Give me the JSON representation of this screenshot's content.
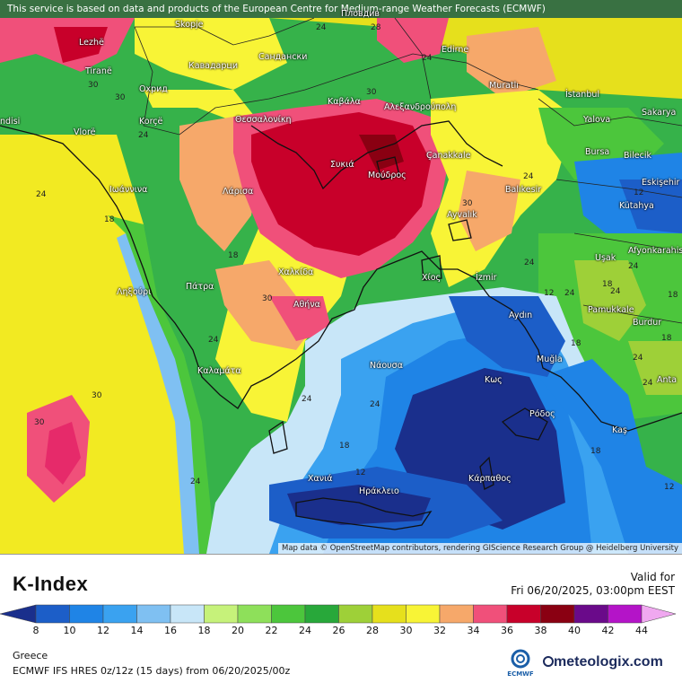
{
  "map": {
    "top_note": "This service is based on data and products of the European Centre for Medium-range Weather Forecasts (ECMWF)",
    "attribution": "Map data © OpenStreetMap contributors, rendering GIScience Research Group @ Heidelberg University",
    "cities": [
      {
        "name": "Skopje",
        "label": "Skopje"
      },
      {
        "name": "Lezhe",
        "label": "Lezhë"
      },
      {
        "name": "Tirane",
        "label": "Tiranë"
      },
      {
        "name": "Kavadarci",
        "label": "Кавадарци"
      },
      {
        "name": "Sandanski",
        "label": "Сандански"
      },
      {
        "name": "Ohrid",
        "label": "Охрид"
      },
      {
        "name": "Edirne",
        "label": "Edirne"
      },
      {
        "name": "Muratli",
        "label": "Muratlı"
      },
      {
        "name": "Istanbul",
        "label": "İstanbul"
      },
      {
        "name": "Yalova",
        "label": "Yalova"
      },
      {
        "name": "Sakarya",
        "label": "Sakarya"
      },
      {
        "name": "Kavala",
        "label": "Καβάλα"
      },
      {
        "name": "Alexandroupoli",
        "label": "Αλεξανδρούπολη"
      },
      {
        "name": "Thessaloniki",
        "label": "Θεσσαλονίκη"
      },
      {
        "name": "Korce",
        "label": "Korçë"
      },
      {
        "name": "Vlore",
        "label": "Vlorë"
      },
      {
        "name": "Bursa",
        "label": "Bursa"
      },
      {
        "name": "Bilecik",
        "label": "Bilecik"
      },
      {
        "name": "Eskisehir",
        "label": "Eskişehir"
      },
      {
        "name": "Canakkale",
        "label": "Çanakkale"
      },
      {
        "name": "Sykia",
        "label": "Συκιά"
      },
      {
        "name": "Moudros",
        "label": "Μούδρος"
      },
      {
        "name": "Ioannina",
        "label": "Ιωάννινα"
      },
      {
        "name": "Larisa",
        "label": "Λάρισα"
      },
      {
        "name": "Balikesir",
        "label": "Balıkesir"
      },
      {
        "name": "Kutahya",
        "label": "Kütahya"
      },
      {
        "name": "Ayvalik",
        "label": "Ayvalık"
      },
      {
        "name": "Afyonkarahisar",
        "label": "Afyonkarahisar"
      },
      {
        "name": "Usak",
        "label": "Uşak"
      },
      {
        "name": "Lixouri",
        "label": "Ληξούρι"
      },
      {
        "name": "Patra",
        "label": "Πάτρα"
      },
      {
        "name": "Chalkida",
        "label": "Χαλκίδα"
      },
      {
        "name": "Chios",
        "label": "Χίος"
      },
      {
        "name": "Izmir",
        "label": "İzmir"
      },
      {
        "name": "Athina",
        "label": "Αθήνα"
      },
      {
        "name": "Aydin",
        "label": "Aydın"
      },
      {
        "name": "Pamukkale",
        "label": "Pamukkale"
      },
      {
        "name": "Burdur",
        "label": "Burdur"
      },
      {
        "name": "Kalamata",
        "label": "Καλαμάτα"
      },
      {
        "name": "Naousa",
        "label": "Νάουσα"
      },
      {
        "name": "Mugla",
        "label": "Muğla"
      },
      {
        "name": "Kos",
        "label": "Κως"
      },
      {
        "name": "Rodos",
        "label": "Ρόδος"
      },
      {
        "name": "Kas",
        "label": "Kaş"
      },
      {
        "name": "Chania",
        "label": "Χανιά"
      },
      {
        "name": "Karpathos",
        "label": "Κάρπαθος"
      },
      {
        "name": "Irakleio",
        "label": "Ηράκλειο"
      },
      {
        "name": "Antalya",
        "label": "Anta"
      },
      {
        "name": "Plovdiv",
        "label": "Пловдив"
      },
      {
        "name": "Adisi",
        "label": "ndisi"
      }
    ],
    "contour_labels": [
      "24",
      "28",
      "30",
      "24",
      "30",
      "24",
      "30",
      "24",
      "12",
      "24",
      "18",
      "30",
      "24",
      "18",
      "24",
      "12",
      "24",
      "18",
      "30",
      "30",
      "18",
      "18",
      "30",
      "24",
      "18",
      "24",
      "24",
      "12",
      "18",
      "12",
      "24",
      "24",
      "24",
      "18",
      "24"
    ]
  },
  "legend": {
    "title": "K-Index",
    "valid_label": "Valid for",
    "valid_time": "Fri 06/20/2025, 03:00pm EEST",
    "region": "Greece",
    "model_line": "ECMWF IFS HRES 0z/12z (15 days) from 06/20/2025/00z",
    "ecmwf_label": "ECMWF",
    "brand": "meteologix.com",
    "ticks": [
      "8",
      "10",
      "12",
      "14",
      "16",
      "18",
      "20",
      "22",
      "24",
      "26",
      "28",
      "30",
      "32",
      "34",
      "36",
      "38",
      "40",
      "42",
      "44"
    ],
    "colors": [
      "#1a2f8c",
      "#1c5ec8",
      "#1f84e6",
      "#3aa2f0",
      "#7fc0f2",
      "#c8e6f8",
      "#c6f27a",
      "#8ee05a",
      "#4cc63c",
      "#28a83a",
      "#9ed038",
      "#e6e01c",
      "#f8f436",
      "#f6a86a",
      "#f0507a",
      "#c8002a",
      "#8a0012",
      "#6a0a8a",
      "#b414c8",
      "#e04ae6",
      "#f0a8f0"
    ],
    "colors_note": "scale from deep blue (low) through green, yellow, red to purple/pink (high)"
  }
}
